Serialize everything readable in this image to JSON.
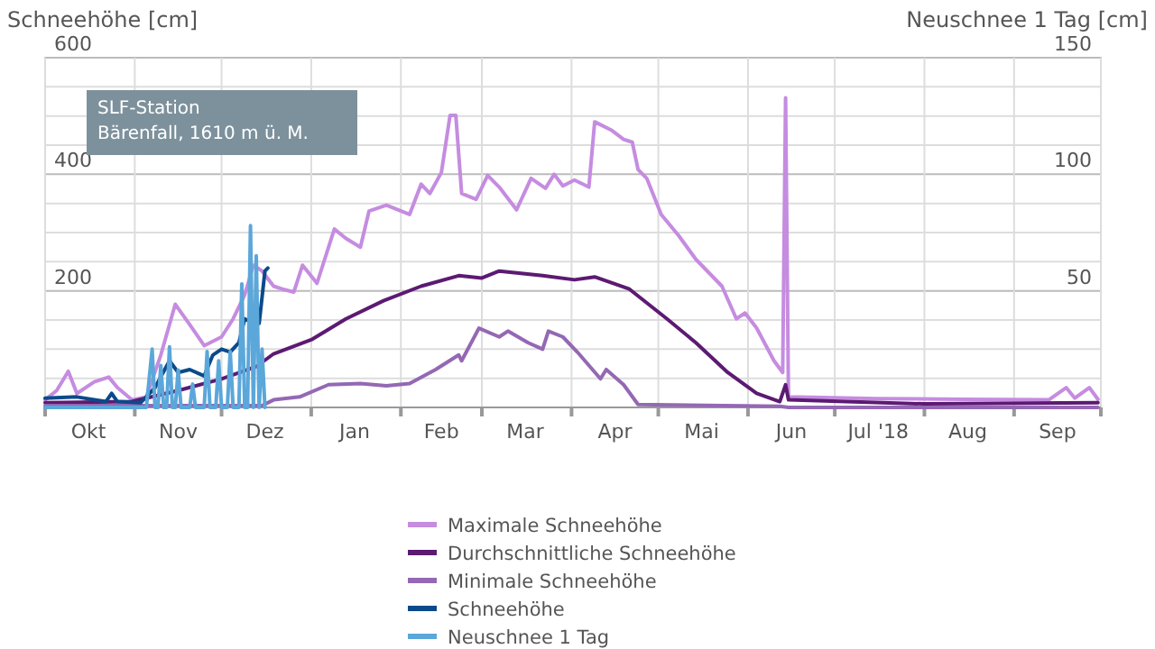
{
  "chart_data": {
    "type": "line",
    "ylabel": "Schneehöhe [cm]",
    "y2label": "Neuschnee 1 Tag [cm]",
    "annotations": [
      "SLF-Station\nBärenfall, 1610 m ü. M."
    ],
    "grid": true,
    "legend": "bottom",
    "xlim": [
      "2017-10-01",
      "2018-10-01"
    ],
    "xticks": [
      {
        "value": "2017-10-01",
        "label": null
      },
      {
        "value": "2017-10-16",
        "label": "Okt"
      },
      {
        "value": "2017-11-01",
        "label": null
      },
      {
        "value": "2017-11-16",
        "label": "Nov"
      },
      {
        "value": "2017-12-01",
        "label": null
      },
      {
        "value": "2017-12-16",
        "label": "Dez"
      },
      {
        "value": "2018-01-01",
        "label": null
      },
      {
        "value": "2018-01-16",
        "label": "Jan"
      },
      {
        "value": "2018-02-01",
        "label": null
      },
      {
        "value": "2018-02-15",
        "label": "Feb"
      },
      {
        "value": "2018-03-01",
        "label": null
      },
      {
        "value": "2018-03-16",
        "label": "Mar"
      },
      {
        "value": "2018-04-01",
        "label": null
      },
      {
        "value": "2018-04-16",
        "label": "Apr"
      },
      {
        "value": "2018-05-01",
        "label": null
      },
      {
        "value": "2018-05-16",
        "label": "Mai"
      },
      {
        "value": "2018-06-01",
        "label": null
      },
      {
        "value": "2018-06-16",
        "label": "Jun"
      },
      {
        "value": "2018-07-01",
        "label": null
      },
      {
        "value": "2018-07-16",
        "label": "Jul '18"
      },
      {
        "value": "2018-08-01",
        "label": null
      },
      {
        "value": "2018-08-16",
        "label": "Aug"
      },
      {
        "value": "2018-09-01",
        "label": null
      },
      {
        "value": "2018-09-16",
        "label": "Sep"
      },
      {
        "value": "2018-10-01",
        "label": null
      }
    ],
    "ylim": [
      0,
      600
    ],
    "yticks": [
      {
        "value": 0,
        "label": null
      },
      {
        "value": 50,
        "label": null
      },
      {
        "value": 100,
        "label": null
      },
      {
        "value": 150,
        "label": null
      },
      200,
      {
        "value": 250,
        "label": null
      },
      {
        "value": 300,
        "label": null
      },
      {
        "value": 350,
        "label": null
      },
      400,
      {
        "value": 450,
        "label": null
      },
      {
        "value": 500,
        "label": null
      },
      {
        "value": 550,
        "label": null
      },
      600
    ],
    "y2lim": [
      0,
      150
    ],
    "y2ticks": [
      50,
      100,
      150
    ],
    "series": [
      {
        "name": "Maximale Schneehöhe",
        "color": "#c58ce0",
        "x": [
          "2017-10-01",
          "2017-10-05",
          "2017-10-09",
          "2017-10-12",
          "2017-10-18",
          "2017-10-23",
          "2017-10-26",
          "2017-10-31",
          "2017-11-05",
          "2017-11-10",
          "2017-11-15",
          "2017-11-20",
          "2017-11-25",
          "2017-12-01",
          "2017-12-05",
          "2017-12-09",
          "2017-12-12",
          "2017-12-15",
          "2017-12-19",
          "2017-12-22",
          "2017-12-26",
          "2017-12-29",
          "2018-01-03",
          "2018-01-09",
          "2018-01-13",
          "2018-01-18",
          "2018-01-21",
          "2018-01-27",
          "2018-02-04",
          "2018-02-08",
          "2018-02-11",
          "2018-02-15",
          "2018-02-18",
          "2018-02-20",
          "2018-02-22",
          "2018-02-27",
          "2018-03-03",
          "2018-03-07",
          "2018-03-13",
          "2018-03-18",
          "2018-03-23",
          "2018-03-26",
          "2018-03-29",
          "2018-04-02",
          "2018-04-07",
          "2018-04-09",
          "2018-04-15",
          "2018-04-19",
          "2018-04-22",
          "2018-04-24",
          "2018-04-27",
          "2018-05-02",
          "2018-05-08",
          "2018-05-14",
          "2018-05-23",
          "2018-05-28",
          "2018-05-31",
          "2018-06-04",
          "2018-06-10",
          "2018-06-13",
          "2018-06-14",
          "2018-06-15",
          "2018-07-15",
          "2018-08-15",
          "2018-09-13",
          "2018-09-19",
          "2018-09-22",
          "2018-09-27",
          "2018-09-30"
        ],
        "values": [
          13,
          29,
          62,
          24,
          44,
          52,
          34,
          13,
          18,
          90,
          177,
          142,
          106,
          121,
          152,
          193,
          244,
          234,
          208,
          203,
          198,
          244,
          213,
          306,
          290,
          275,
          337,
          347,
          331,
          383,
          367,
          403,
          501,
          501,
          367,
          357,
          398,
          378,
          339,
          393,
          376,
          400,
          380,
          390,
          378,
          490,
          475,
          460,
          455,
          408,
          393,
          331,
          295,
          254,
          208,
          152,
          162,
          136,
          80,
          60,
          531,
          18,
          15,
          14,
          13,
          34,
          16,
          34,
          14
        ]
      },
      {
        "name": "Durchschnittliche Schneehöhe",
        "color": "#5c1a72",
        "x": [
          "2017-10-01",
          "2017-10-31",
          "2017-11-16",
          "2017-12-01",
          "2017-12-13",
          "2017-12-19",
          "2018-01-01",
          "2018-01-13",
          "2018-01-26",
          "2018-02-08",
          "2018-02-21",
          "2018-03-01",
          "2018-03-07",
          "2018-03-22",
          "2018-04-02",
          "2018-04-09",
          "2018-04-21",
          "2018-05-04",
          "2018-05-14",
          "2018-05-25",
          "2018-06-04",
          "2018-06-12",
          "2018-06-14",
          "2018-06-15",
          "2018-08-01",
          "2018-09-30"
        ],
        "values": [
          8,
          10,
          29,
          49,
          70,
          92,
          116,
          152,
          183,
          208,
          226,
          222,
          234,
          226,
          219,
          224,
          203,
          152,
          111,
          60,
          24,
          10,
          39,
          13,
          6,
          8
        ]
      },
      {
        "name": "Minimale Schneehöhe",
        "color": "#9468b4",
        "x": [
          "2017-10-01",
          "2017-12-15",
          "2017-12-19",
          "2017-12-28",
          "2018-01-07",
          "2018-01-18",
          "2018-01-27",
          "2018-02-04",
          "2018-02-13",
          "2018-02-21",
          "2018-02-22",
          "2018-02-28",
          "2018-03-07",
          "2018-03-10",
          "2018-03-17",
          "2018-03-22",
          "2018-03-24",
          "2018-03-29",
          "2018-04-03",
          "2018-04-11",
          "2018-04-13",
          "2018-04-19",
          "2018-04-24",
          "2018-06-12",
          "2018-06-15",
          "2018-09-30"
        ],
        "values": [
          3,
          3,
          13,
          18,
          39,
          41,
          37,
          41,
          65,
          90,
          80,
          136,
          121,
          131,
          111,
          100,
          131,
          121,
          95,
          49,
          65,
          39,
          5,
          2,
          0,
          0
        ]
      },
      {
        "name": "Schneehöhe",
        "color": "#0b4a8a",
        "x": [
          "2017-10-01",
          "2017-10-12",
          "2017-10-22",
          "2017-10-24",
          "2017-10-26",
          "2017-11-03",
          "2017-11-08",
          "2017-11-13",
          "2017-11-16",
          "2017-11-20",
          "2017-11-25",
          "2017-11-28",
          "2017-12-01",
          "2017-12-04",
          "2017-12-07",
          "2017-12-09",
          "2017-12-11",
          "2017-12-13",
          "2017-12-14",
          "2017-12-16",
          "2017-12-17"
        ],
        "values": [
          16,
          18,
          10,
          24,
          10,
          8,
          34,
          80,
          60,
          65,
          54,
          90,
          100,
          95,
          111,
          152,
          147,
          183,
          144,
          234,
          239
        ]
      },
      {
        "name": "Neuschnee 1 Tag",
        "color": "#5ba7da",
        "axis": "y2",
        "x": [
          "2017-10-01",
          "2017-11-05",
          "2017-11-07",
          "2017-11-08",
          "2017-11-09",
          "2017-11-10",
          "2017-11-11",
          "2017-11-12",
          "2017-11-13",
          "2017-11-14",
          "2017-11-15",
          "2017-11-16",
          "2017-11-17",
          "2017-11-20",
          "2017-11-21",
          "2017-11-22",
          "2017-11-25",
          "2017-11-26",
          "2017-11-27",
          "2017-11-29",
          "2017-11-30",
          "2017-12-01",
          "2017-12-03",
          "2017-12-04",
          "2017-12-05",
          "2017-12-07",
          "2017-12-08",
          "2017-12-09",
          "2017-12-10",
          "2017-12-11",
          "2017-12-12",
          "2017-12-13",
          "2017-12-14",
          "2017-12-15",
          "2017-12-16"
        ],
        "values": [
          0,
          0,
          25,
          0,
          0,
          18,
          0,
          0,
          26,
          0,
          0,
          16,
          0,
          0,
          10,
          0,
          0,
          24,
          0,
          0,
          20,
          0,
          0,
          24,
          0,
          0,
          53,
          0,
          0,
          78,
          0,
          65,
          0,
          25,
          0
        ]
      }
    ]
  }
}
